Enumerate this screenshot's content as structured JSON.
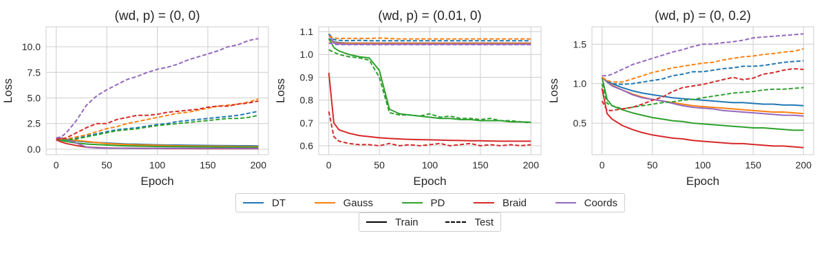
{
  "chart_data": [
    {
      "type": "line",
      "title": "(wd, p) = (0, 0)",
      "xlabel": "Epoch",
      "ylabel": "Loss",
      "xlim": [
        -10,
        210
      ],
      "ylim": [
        -0.54,
        11.95
      ],
      "xticks": [
        0,
        50,
        100,
        150,
        200
      ],
      "yticks": [
        0.0,
        2.5,
        5.0,
        7.5,
        10.0
      ],
      "ytick_labels": [
        "0.0",
        "2.5",
        "5.0",
        "7.5",
        "10.0"
      ],
      "grid": true,
      "x": [
        0,
        5,
        10,
        20,
        30,
        40,
        50,
        60,
        70,
        80,
        90,
        100,
        110,
        120,
        130,
        140,
        150,
        160,
        170,
        180,
        190,
        200
      ],
      "series": [
        {
          "name": "DT",
          "split": "Train",
          "values": [
            1.05,
            0.95,
            0.9,
            0.8,
            0.7,
            0.65,
            0.6,
            0.55,
            0.5,
            0.48,
            0.45,
            0.43,
            0.4,
            0.4,
            0.38,
            0.37,
            0.36,
            0.35,
            0.34,
            0.33,
            0.33,
            0.32
          ]
        },
        {
          "name": "Gauss",
          "split": "Train",
          "values": [
            1.05,
            1.0,
            0.95,
            0.85,
            0.75,
            0.65,
            0.55,
            0.5,
            0.45,
            0.42,
            0.4,
            0.37,
            0.35,
            0.33,
            0.31,
            0.3,
            0.29,
            0.28,
            0.27,
            0.26,
            0.25,
            0.25
          ]
        },
        {
          "name": "PD",
          "split": "Train",
          "values": [
            1.0,
            0.85,
            0.75,
            0.6,
            0.5,
            0.45,
            0.4,
            0.35,
            0.32,
            0.3,
            0.28,
            0.26,
            0.25,
            0.24,
            0.23,
            0.22,
            0.21,
            0.2,
            0.2,
            0.19,
            0.19,
            0.18
          ]
        },
        {
          "name": "Braid",
          "split": "Train",
          "values": [
            0.9,
            0.7,
            0.55,
            0.35,
            0.2,
            0.15,
            0.12,
            0.1,
            0.09,
            0.08,
            0.07,
            0.07,
            0.06,
            0.06,
            0.06,
            0.05,
            0.05,
            0.05,
            0.05,
            0.05,
            0.05,
            0.05
          ]
        },
        {
          "name": "Coords",
          "split": "Train",
          "values": [
            1.1,
            1.1,
            1.0,
            0.6,
            0.2,
            0.12,
            0.1,
            0.09,
            0.09,
            0.08,
            0.08,
            0.08,
            0.08,
            0.08,
            0.08,
            0.08,
            0.08,
            0.08,
            0.08,
            0.08,
            0.08,
            0.08
          ]
        },
        {
          "name": "DT",
          "split": "Test",
          "values": [
            1.0,
            1.0,
            1.0,
            1.1,
            1.3,
            1.5,
            1.7,
            1.9,
            2.0,
            2.1,
            2.25,
            2.4,
            2.5,
            2.7,
            2.8,
            2.9,
            3.0,
            3.1,
            3.2,
            3.3,
            3.5,
            3.7
          ]
        },
        {
          "name": "Gauss",
          "split": "Test",
          "values": [
            1.0,
            1.0,
            1.0,
            1.2,
            1.4,
            1.7,
            2.0,
            2.2,
            2.5,
            2.7,
            2.9,
            3.1,
            3.3,
            3.5,
            3.6,
            3.8,
            4.0,
            4.2,
            4.3,
            4.4,
            4.6,
            4.9
          ]
        },
        {
          "name": "PD",
          "split": "Test",
          "values": [
            1.0,
            0.9,
            0.9,
            1.0,
            1.2,
            1.4,
            1.6,
            1.8,
            1.9,
            2.0,
            2.15,
            2.3,
            2.4,
            2.5,
            2.6,
            2.7,
            2.8,
            2.9,
            3.0,
            3.0,
            3.1,
            3.3
          ]
        },
        {
          "name": "Braid",
          "split": "Test",
          "values": [
            1.0,
            1.0,
            1.1,
            1.6,
            2.1,
            2.5,
            2.5,
            2.9,
            3.1,
            3.3,
            3.3,
            3.4,
            3.6,
            3.7,
            3.8,
            3.9,
            4.1,
            4.2,
            4.2,
            4.4,
            4.5,
            4.7
          ]
        },
        {
          "name": "Coords",
          "split": "Test",
          "values": [
            1.1,
            1.2,
            1.6,
            2.8,
            4.3,
            5.2,
            5.8,
            6.3,
            6.8,
            7.1,
            7.5,
            7.8,
            8.0,
            8.3,
            8.7,
            9.0,
            9.3,
            9.6,
            10.0,
            10.2,
            10.6,
            10.8
          ]
        }
      ]
    },
    {
      "type": "line",
      "title": "(wd, p) = (0.01, 0)",
      "xlabel": "Epoch",
      "ylabel": "Loss",
      "xlim": [
        -10,
        210
      ],
      "ylim": [
        0.561,
        1.121
      ],
      "xticks": [
        0,
        50,
        100,
        150,
        200
      ],
      "yticks": [
        0.6,
        0.7,
        0.8,
        0.9,
        1.0,
        1.1
      ],
      "ytick_labels": [
        "0.6",
        "0.7",
        "0.8",
        "0.9",
        "1.0",
        "1.1"
      ],
      "grid": true,
      "x": [
        0,
        5,
        10,
        20,
        30,
        40,
        50,
        60,
        70,
        80,
        90,
        100,
        110,
        120,
        130,
        140,
        150,
        160,
        170,
        180,
        190,
        200
      ],
      "series": [
        {
          "name": "DT",
          "split": "Train",
          "values": [
            1.07,
            1.055,
            1.052,
            1.05,
            1.05,
            1.05,
            1.05,
            1.05,
            1.05,
            1.05,
            1.05,
            1.05,
            1.05,
            1.05,
            1.05,
            1.05,
            1.05,
            1.05,
            1.05,
            1.05,
            1.05,
            1.05
          ]
        },
        {
          "name": "Gauss",
          "split": "Train",
          "values": [
            1.065,
            1.052,
            1.05,
            1.049,
            1.049,
            1.049,
            1.049,
            1.049,
            1.049,
            1.049,
            1.049,
            1.049,
            1.049,
            1.049,
            1.049,
            1.049,
            1.049,
            1.049,
            1.049,
            1.049,
            1.049,
            1.049
          ]
        },
        {
          "name": "PD",
          "split": "Train",
          "values": [
            1.07,
            1.03,
            1.015,
            1.0,
            0.99,
            0.985,
            0.93,
            0.76,
            0.74,
            0.735,
            0.73,
            0.725,
            0.72,
            0.72,
            0.715,
            0.715,
            0.71,
            0.71,
            0.71,
            0.705,
            0.705,
            0.703
          ]
        },
        {
          "name": "Braid",
          "split": "Train",
          "values": [
            0.92,
            0.7,
            0.67,
            0.655,
            0.645,
            0.64,
            0.635,
            0.632,
            0.63,
            0.628,
            0.627,
            0.626,
            0.625,
            0.624,
            0.623,
            0.622,
            0.622,
            0.621,
            0.62,
            0.62,
            0.62,
            0.62
          ]
        },
        {
          "name": "Coords",
          "split": "Train",
          "values": [
            1.09,
            1.05,
            1.046,
            1.045,
            1.045,
            1.045,
            1.045,
            1.045,
            1.045,
            1.045,
            1.045,
            1.045,
            1.045,
            1.045,
            1.045,
            1.045,
            1.045,
            1.045,
            1.045,
            1.045,
            1.045,
            1.045
          ]
        },
        {
          "name": "DT",
          "split": "Test",
          "values": [
            1.09,
            1.065,
            1.062,
            1.06,
            1.062,
            1.06,
            1.06,
            1.06,
            1.06,
            1.06,
            1.06,
            1.06,
            1.06,
            1.06,
            1.06,
            1.06,
            1.06,
            1.06,
            1.06,
            1.06,
            1.06,
            1.06
          ]
        },
        {
          "name": "Gauss",
          "split": "Test",
          "values": [
            1.08,
            1.072,
            1.07,
            1.07,
            1.07,
            1.07,
            1.072,
            1.07,
            1.068,
            1.068,
            1.068,
            1.068,
            1.068,
            1.068,
            1.068,
            1.068,
            1.068,
            1.068,
            1.068,
            1.068,
            1.068,
            1.068
          ]
        },
        {
          "name": "PD",
          "split": "Test",
          "values": [
            1.02,
            1.01,
            1.0,
            0.99,
            0.985,
            0.975,
            0.9,
            0.745,
            0.735,
            0.735,
            0.73,
            0.74,
            0.725,
            0.73,
            0.72,
            0.72,
            0.715,
            0.72,
            0.71,
            0.71,
            0.705,
            0.7
          ]
        },
        {
          "name": "Braid",
          "split": "Test",
          "values": [
            0.75,
            0.64,
            0.62,
            0.61,
            0.605,
            0.605,
            0.6,
            0.61,
            0.6,
            0.605,
            0.6,
            0.605,
            0.61,
            0.6,
            0.605,
            0.61,
            0.6,
            0.605,
            0.6,
            0.605,
            0.6,
            0.605
          ]
        },
        {
          "name": "Coords",
          "split": "Test",
          "values": [
            1.05,
            1.045,
            1.043,
            1.043,
            1.043,
            1.043,
            1.043,
            1.043,
            1.043,
            1.043,
            1.043,
            1.043,
            1.043,
            1.043,
            1.043,
            1.043,
            1.043,
            1.043,
            1.043,
            1.043,
            1.043,
            1.043
          ]
        }
      ]
    },
    {
      "type": "line",
      "title": "(wd, p) = (0, 0.2)",
      "xlabel": "Epoch",
      "ylabel": "Loss",
      "xlim": [
        -10,
        210
      ],
      "ylim": [
        0.1,
        1.72
      ],
      "xticks": [
        0,
        50,
        100,
        150,
        200
      ],
      "yticks": [
        0.5,
        1.0,
        1.5
      ],
      "ytick_labels": [
        "0.5",
        "1.0",
        "1.5"
      ],
      "grid": true,
      "x": [
        0,
        5,
        10,
        20,
        30,
        40,
        50,
        60,
        70,
        80,
        90,
        100,
        110,
        120,
        130,
        140,
        150,
        160,
        170,
        180,
        190,
        200
      ],
      "series": [
        {
          "name": "DT",
          "split": "Train",
          "values": [
            1.08,
            1.03,
            1.0,
            0.95,
            0.91,
            0.88,
            0.86,
            0.84,
            0.82,
            0.81,
            0.8,
            0.79,
            0.78,
            0.77,
            0.76,
            0.76,
            0.75,
            0.74,
            0.74,
            0.73,
            0.73,
            0.72
          ]
        },
        {
          "name": "Gauss",
          "split": "Train",
          "values": [
            1.08,
            1.03,
            0.98,
            0.92,
            0.87,
            0.83,
            0.8,
            0.78,
            0.76,
            0.74,
            0.72,
            0.71,
            0.7,
            0.69,
            0.68,
            0.67,
            0.66,
            0.65,
            0.64,
            0.64,
            0.63,
            0.62
          ]
        },
        {
          "name": "PD",
          "split": "Train",
          "values": [
            1.08,
            0.8,
            0.72,
            0.67,
            0.63,
            0.6,
            0.57,
            0.55,
            0.53,
            0.52,
            0.5,
            0.49,
            0.48,
            0.47,
            0.46,
            0.45,
            0.44,
            0.44,
            0.43,
            0.42,
            0.41,
            0.41
          ]
        },
        {
          "name": "Braid",
          "split": "Train",
          "values": [
            0.94,
            0.62,
            0.55,
            0.47,
            0.42,
            0.38,
            0.35,
            0.33,
            0.31,
            0.3,
            0.28,
            0.27,
            0.26,
            0.25,
            0.24,
            0.24,
            0.23,
            0.22,
            0.21,
            0.21,
            0.2,
            0.19
          ]
        },
        {
          "name": "Coords",
          "split": "Train",
          "values": [
            1.08,
            1.02,
            0.97,
            0.92,
            0.86,
            0.82,
            0.8,
            0.78,
            0.75,
            0.72,
            0.7,
            0.69,
            0.68,
            0.66,
            0.65,
            0.64,
            0.63,
            0.62,
            0.61,
            0.6,
            0.6,
            0.59
          ]
        },
        {
          "name": "DT",
          "split": "Test",
          "values": [
            1.08,
            1.03,
            1.0,
            0.99,
            1.0,
            1.02,
            1.04,
            1.06,
            1.1,
            1.12,
            1.15,
            1.15,
            1.17,
            1.19,
            1.2,
            1.22,
            1.22,
            1.23,
            1.25,
            1.27,
            1.28,
            1.29
          ]
        },
        {
          "name": "Gauss",
          "split": "Test",
          "values": [
            1.08,
            1.04,
            1.02,
            1.02,
            1.06,
            1.1,
            1.14,
            1.17,
            1.2,
            1.22,
            1.24,
            1.26,
            1.27,
            1.3,
            1.32,
            1.34,
            1.35,
            1.37,
            1.38,
            1.4,
            1.41,
            1.44
          ]
        },
        {
          "name": "PD",
          "split": "Test",
          "values": [
            1.0,
            0.75,
            0.72,
            0.68,
            0.7,
            0.72,
            0.74,
            0.76,
            0.77,
            0.79,
            0.8,
            0.82,
            0.84,
            0.86,
            0.88,
            0.89,
            0.9,
            0.92,
            0.93,
            0.93,
            0.94,
            0.95
          ]
        },
        {
          "name": "Braid",
          "split": "Test",
          "values": [
            0.78,
            0.66,
            0.66,
            0.68,
            0.7,
            0.74,
            0.79,
            0.83,
            0.9,
            0.95,
            0.97,
            0.99,
            1.02,
            1.05,
            1.08,
            1.05,
            1.07,
            1.12,
            1.14,
            1.17,
            1.19,
            1.18
          ]
        },
        {
          "name": "Coords",
          "split": "Test",
          "values": [
            1.1,
            1.1,
            1.12,
            1.18,
            1.24,
            1.28,
            1.32,
            1.36,
            1.4,
            1.43,
            1.47,
            1.5,
            1.5,
            1.52,
            1.53,
            1.55,
            1.58,
            1.59,
            1.6,
            1.61,
            1.62,
            1.63
          ]
        }
      ]
    }
  ],
  "colors": {
    "DT": "#1f77b4",
    "Gauss": "#ff7f0e",
    "PD": "#2ca02c",
    "Braid": "#d62728",
    "Coords": "#9467bd"
  },
  "legend_methods": {
    "placement": "bottom-center",
    "items": [
      {
        "label": "DT",
        "color": "#1f77b4"
      },
      {
        "label": "Gauss",
        "color": "#ff7f0e"
      },
      {
        "label": "PD",
        "color": "#2ca02c"
      },
      {
        "label": "Braid",
        "color": "#d62728"
      },
      {
        "label": "Coords",
        "color": "#9467bd"
      }
    ]
  },
  "legend_split": {
    "placement": "bottom-center",
    "items": [
      {
        "label": "Train",
        "style": "solid"
      },
      {
        "label": "Test",
        "style": "dashed"
      }
    ]
  }
}
